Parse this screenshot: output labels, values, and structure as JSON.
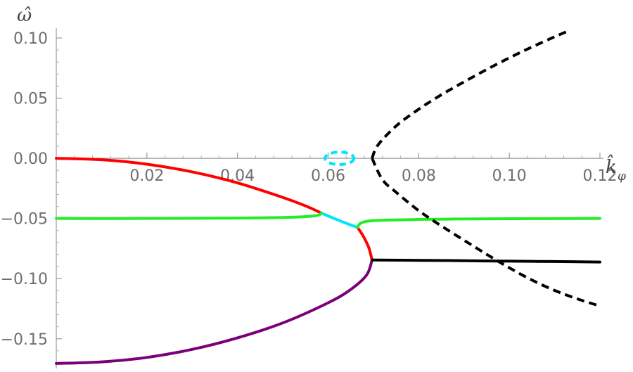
{
  "chart_data": {
    "type": "line",
    "title": "",
    "xlabel": "k̂",
    "xlabel_subscript": "φ",
    "ylabel": "ω̂",
    "xlim": [
      0.0,
      0.12
    ],
    "ylim": [
      -0.17,
      0.1
    ],
    "x_ticks": [
      {
        "value": 0.02,
        "label": "0.02"
      },
      {
        "value": 0.04,
        "label": "0.04"
      },
      {
        "value": 0.06,
        "label": "0.06"
      },
      {
        "value": 0.08,
        "label": "0.08"
      },
      {
        "value": 0.1,
        "label": "0.10"
      },
      {
        "value": 0.12,
        "label": "0.12"
      }
    ],
    "y_ticks": [
      {
        "value": 0.1,
        "label": "0.10"
      },
      {
        "value": 0.05,
        "label": "0.05"
      },
      {
        "value": 0.0,
        "label": "0.00"
      },
      {
        "value": -0.05,
        "label": "−0.05"
      },
      {
        "value": -0.1,
        "label": "−0.10"
      },
      {
        "value": -0.15,
        "label": "−0.15"
      }
    ],
    "grid": false,
    "legend": "none",
    "series": [
      {
        "id": "red-upper-branch",
        "color": "#ff0000",
        "dash": false,
        "points": [
          [
            0.0,
            0.0
          ],
          [
            0.01,
            -0.0012
          ],
          [
            0.02,
            -0.0049
          ],
          [
            0.03,
            -0.0113
          ],
          [
            0.04,
            -0.0204
          ],
          [
            0.05,
            -0.0325
          ],
          [
            0.055,
            -0.0395
          ],
          [
            0.0585,
            -0.0455
          ]
        ]
      },
      {
        "id": "cyan-connector",
        "color": "#00e5ff",
        "dash": false,
        "points": [
          [
            0.0585,
            -0.0455
          ],
          [
            0.061,
            -0.0495
          ],
          [
            0.064,
            -0.054
          ],
          [
            0.0665,
            -0.0575
          ]
        ]
      },
      {
        "id": "red-lower-segment",
        "color": "#ff0000",
        "dash": false,
        "points": [
          [
            0.0665,
            -0.0575
          ],
          [
            0.0678,
            -0.065
          ],
          [
            0.069,
            -0.0745
          ],
          [
            0.0697,
            -0.0845
          ]
        ]
      },
      {
        "id": "purple-branch",
        "color": "#7a007a",
        "dash": false,
        "points": [
          [
            0.0,
            -0.1705
          ],
          [
            0.01,
            -0.1692
          ],
          [
            0.02,
            -0.1655
          ],
          [
            0.03,
            -0.1588
          ],
          [
            0.04,
            -0.1492
          ],
          [
            0.05,
            -0.1368
          ],
          [
            0.06,
            -0.1201
          ],
          [
            0.065,
            -0.109
          ],
          [
            0.0685,
            -0.097
          ],
          [
            0.0697,
            -0.0845
          ]
        ]
      },
      {
        "id": "green-left-branch",
        "color": "#22ee22",
        "dash": false,
        "points": [
          [
            0.0,
            -0.05
          ],
          [
            0.02,
            -0.05
          ],
          [
            0.04,
            -0.0497
          ],
          [
            0.05,
            -0.0492
          ],
          [
            0.056,
            -0.0482
          ],
          [
            0.058,
            -0.047
          ],
          [
            0.0585,
            -0.0455
          ]
        ]
      },
      {
        "id": "green-right-branch",
        "color": "#22ee22",
        "dash": false,
        "points": [
          [
            0.0665,
            -0.0575
          ],
          [
            0.0672,
            -0.054
          ],
          [
            0.07,
            -0.0518
          ],
          [
            0.08,
            -0.0508
          ],
          [
            0.09,
            -0.0504
          ],
          [
            0.1,
            -0.0502
          ],
          [
            0.12,
            -0.05
          ]
        ]
      },
      {
        "id": "black-solid-branch",
        "color": "#000000",
        "dash": false,
        "points": [
          [
            0.0697,
            -0.0845
          ],
          [
            0.08,
            -0.0848
          ],
          [
            0.09,
            -0.0851
          ],
          [
            0.1,
            -0.0855
          ],
          [
            0.11,
            -0.0858
          ],
          [
            0.12,
            -0.0862
          ]
        ]
      },
      {
        "id": "black-dashed-upper",
        "color": "#000000",
        "dash": true,
        "points": [
          [
            0.0697,
            0.0
          ],
          [
            0.071,
            0.011
          ],
          [
            0.075,
            0.0268
          ],
          [
            0.08,
            0.0408
          ],
          [
            0.085,
            0.0528
          ],
          [
            0.09,
            0.0635
          ],
          [
            0.095,
            0.0738
          ],
          [
            0.1,
            0.0835
          ],
          [
            0.105,
            0.0925
          ],
          [
            0.11,
            0.101
          ],
          [
            0.1125,
            0.105
          ]
        ]
      },
      {
        "id": "black-dashed-lower",
        "color": "#000000",
        "dash": true,
        "points": [
          [
            0.0697,
            0.0
          ],
          [
            0.072,
            -0.0178
          ],
          [
            0.075,
            -0.0282
          ],
          [
            0.08,
            -0.0435
          ],
          [
            0.085,
            -0.0562
          ],
          [
            0.09,
            -0.0681
          ],
          [
            0.095,
            -0.0798
          ],
          [
            0.1,
            -0.091
          ],
          [
            0.105,
            -0.1012
          ],
          [
            0.11,
            -0.1098
          ],
          [
            0.115,
            -0.1168
          ],
          [
            0.12,
            -0.1228
          ]
        ]
      }
    ],
    "ellipses": [
      {
        "id": "cyan-dashed-loop",
        "color": "#00e5ff",
        "dash": true,
        "cx": 0.0625,
        "cy": 0.0,
        "rx": 0.0032,
        "ry": 0.0052
      }
    ]
  }
}
